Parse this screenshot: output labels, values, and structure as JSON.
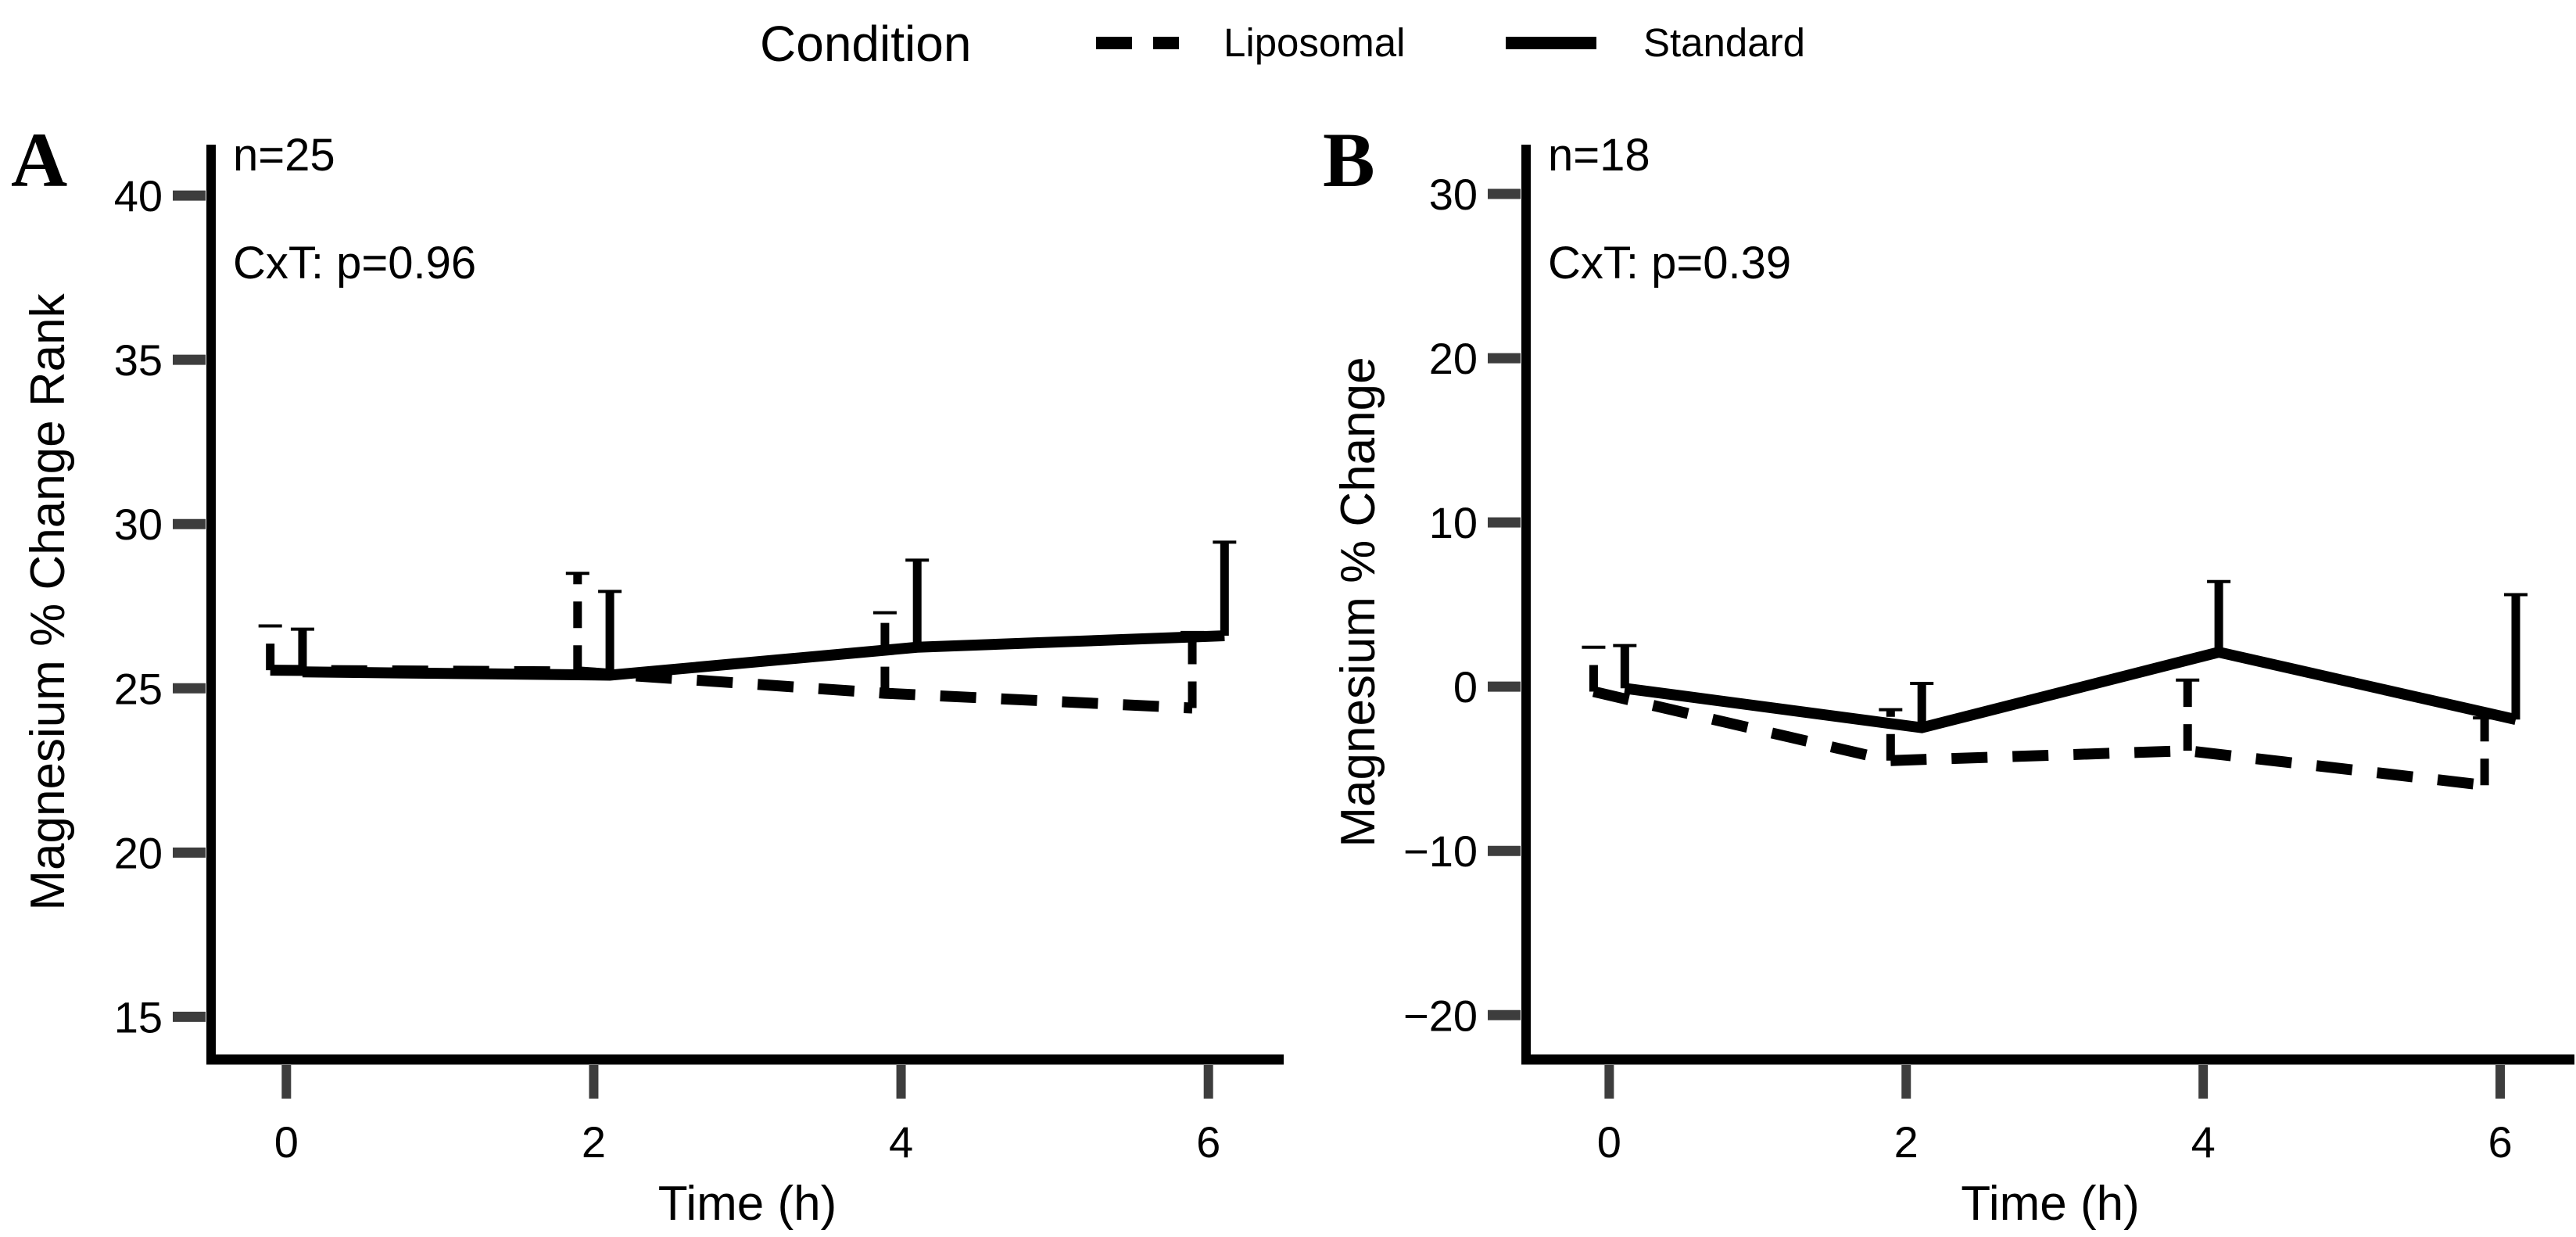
{
  "figure": {
    "background": "#ffffff",
    "line_color": "#000000",
    "tick_color": "#3d3d3d"
  },
  "legend": {
    "title": "Condition",
    "items": [
      {
        "label": "Liposomal",
        "linetype": "dashed"
      },
      {
        "label": "Standard",
        "linetype": "solid"
      }
    ]
  },
  "chart_data": [
    {
      "type": "line",
      "panel_letter": "A",
      "annotations": [
        "n=25",
        "CxT: p=0.96"
      ],
      "xlabel": "Time (h)",
      "ylabel": "Magnesium % Change Rank",
      "x_ticks": [
        0,
        2,
        4,
        6
      ],
      "y_ticks": [
        15,
        20,
        25,
        30,
        35,
        40
      ],
      "xlim": [
        -0.49,
        6.49
      ],
      "ylim": [
        13.7,
        41.55
      ],
      "grid": false,
      "series": [
        {
          "name": "Liposomal",
          "linetype": "dashed",
          "x_offset": -0.105,
          "x": [
            0,
            2,
            4,
            6
          ],
          "y": [
            25.55,
            25.5,
            24.85,
            24.4
          ],
          "upper": [
            26.9,
            28.5,
            27.3,
            26.7
          ]
        },
        {
          "name": "Standard",
          "linetype": "solid",
          "x_offset": 0.105,
          "x": [
            0,
            2,
            4,
            6
          ],
          "y": [
            25.5,
            25.4,
            26.25,
            26.6
          ],
          "upper": [
            26.8,
            27.95,
            28.9,
            29.45
          ]
        }
      ]
    },
    {
      "type": "line",
      "panel_letter": "B",
      "annotations": [
        "n=18",
        "CxT: p=0.39"
      ],
      "xlabel": "Time (h)",
      "ylabel": "Magnesium % Change",
      "x_ticks": [
        0,
        2,
        4,
        6
      ],
      "y_ticks": [
        -20,
        -10,
        0,
        10,
        20,
        30
      ],
      "xlim": [
        -0.56,
        6.5
      ],
      "ylim": [
        -22.7,
        33.0
      ],
      "grid": false,
      "series": [
        {
          "name": "Liposomal",
          "linetype": "dashed",
          "x_offset": -0.105,
          "x": [
            0,
            2,
            4,
            6
          ],
          "y": [
            -0.3,
            -4.5,
            -3.9,
            -6.0
          ],
          "upper": [
            2.4,
            -1.4,
            0.4,
            -1.9
          ]
        },
        {
          "name": "Standard",
          "linetype": "solid",
          "x_offset": 0.105,
          "x": [
            0,
            2,
            4,
            6
          ],
          "y": [
            -0.1,
            -2.5,
            2.1,
            -2.0
          ],
          "upper": [
            2.5,
            0.2,
            6.4,
            5.6
          ]
        }
      ]
    }
  ]
}
